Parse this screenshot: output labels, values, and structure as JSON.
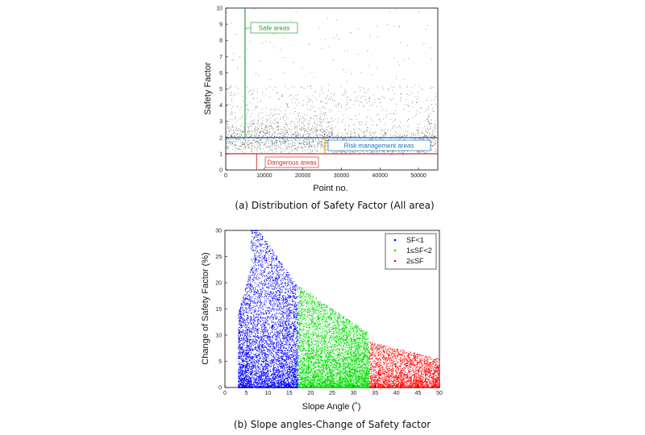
{
  "chart_data": [
    {
      "type": "scatter",
      "title": "",
      "caption": "(a) Distribution of Safety Factor (All area)",
      "xlabel": "Point no.",
      "ylabel": "Safety Factor",
      "xlim": [
        0,
        55000
      ],
      "ylim": [
        0,
        10
      ],
      "xticks": [
        "0",
        "10000",
        "20000",
        "30000",
        "40000",
        "50000"
      ],
      "yticks": [
        "0",
        "1",
        "2",
        "3",
        "4",
        "5",
        "6",
        "7",
        "8",
        "9",
        "10"
      ],
      "grid": false,
      "series": [
        {
          "color": "#000000",
          "points": "dense black point cloud, most values between 0.8 and 4, sparse up to 10"
        }
      ],
      "reference_lines": [
        {
          "y": 2,
          "color": "#1e73be"
        },
        {
          "y": 1,
          "color": "#d32f2f"
        },
        {
          "x": 5000,
          "color": "#2e9d3a"
        }
      ],
      "annotations": [
        {
          "text": "Safe areas",
          "color": "#2e9d3a"
        },
        {
          "text": "Risk management areas",
          "color": "#1e73be"
        },
        {
          "text": "Dangerous areas",
          "color": "#d32f2f"
        }
      ]
    },
    {
      "type": "scatter",
      "title": "",
      "caption": "(b) Slope angles-Change of Safety factor",
      "xlabel": "Slope Angle (˚)",
      "ylabel": "Change of Safety Factor (%)",
      "xlim": [
        0,
        50
      ],
      "ylim": [
        0,
        30
      ],
      "xticks": [
        "0",
        "5",
        "10",
        "15",
        "20",
        "25",
        "30",
        "35",
        "40",
        "45",
        "50"
      ],
      "yticks": [
        "0",
        "5",
        "10",
        "15",
        "20",
        "25",
        "30"
      ],
      "grid": false,
      "legend": "top-right",
      "series": [
        {
          "name": "SF<1",
          "color": "#0000ff",
          "x_range": [
            3,
            17
          ],
          "y_max_approx": 30
        },
        {
          "name": "1≤SF<2",
          "color": "#00dd00",
          "x_range": [
            17,
            33.5
          ],
          "y_max_approx": 20
        },
        {
          "name": "2≤SF",
          "color": "#ff0000",
          "x_range": [
            33.5,
            50
          ],
          "y_max_approx": 9
        }
      ]
    }
  ]
}
